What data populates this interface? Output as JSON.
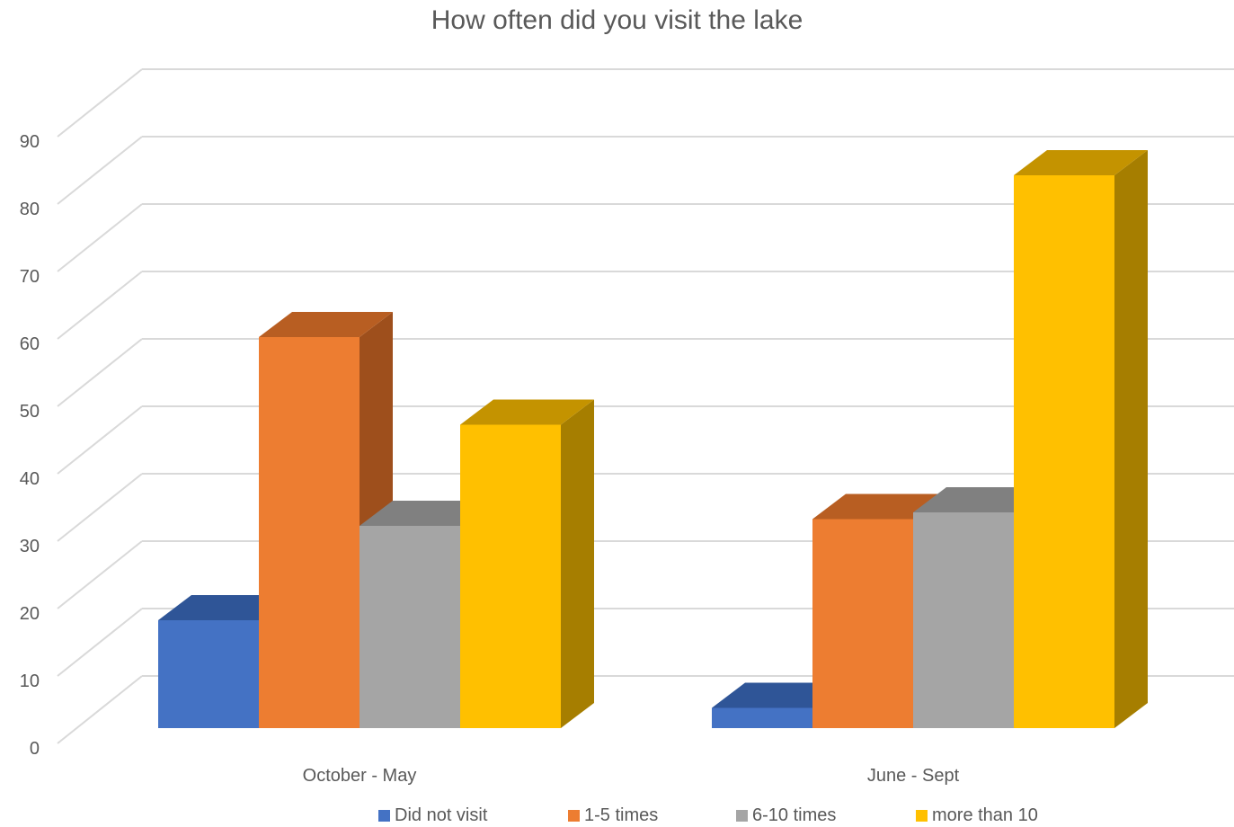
{
  "chart_data": {
    "type": "bar",
    "title": "How often did you visit the lake",
    "categories": [
      "October - May",
      "June - Sept"
    ],
    "series": [
      {
        "name": "Did not visit",
        "values": [
          16,
          3
        ],
        "color": "#4472C4",
        "top_color": "#2F5597",
        "side_color": "#2F5597"
      },
      {
        "name": "1-5 times",
        "values": [
          58,
          31
        ],
        "color": "#ED7D31",
        "top_color": "#B85E22",
        "side_color": "#9E4F1C"
      },
      {
        "name": "6-10 times",
        "values": [
          30,
          32
        ],
        "color": "#A5A5A5",
        "top_color": "#808080",
        "side_color": "#707070"
      },
      {
        "name": "more than 10",
        "values": [
          45,
          82
        ],
        "color": "#FFC000",
        "top_color": "#C49300",
        "side_color": "#A67E00"
      }
    ],
    "ylim": [
      0,
      90
    ],
    "yticks": [
      0,
      10,
      20,
      30,
      40,
      50,
      60,
      70,
      80,
      90
    ],
    "grid": true,
    "legend": "bottom"
  }
}
